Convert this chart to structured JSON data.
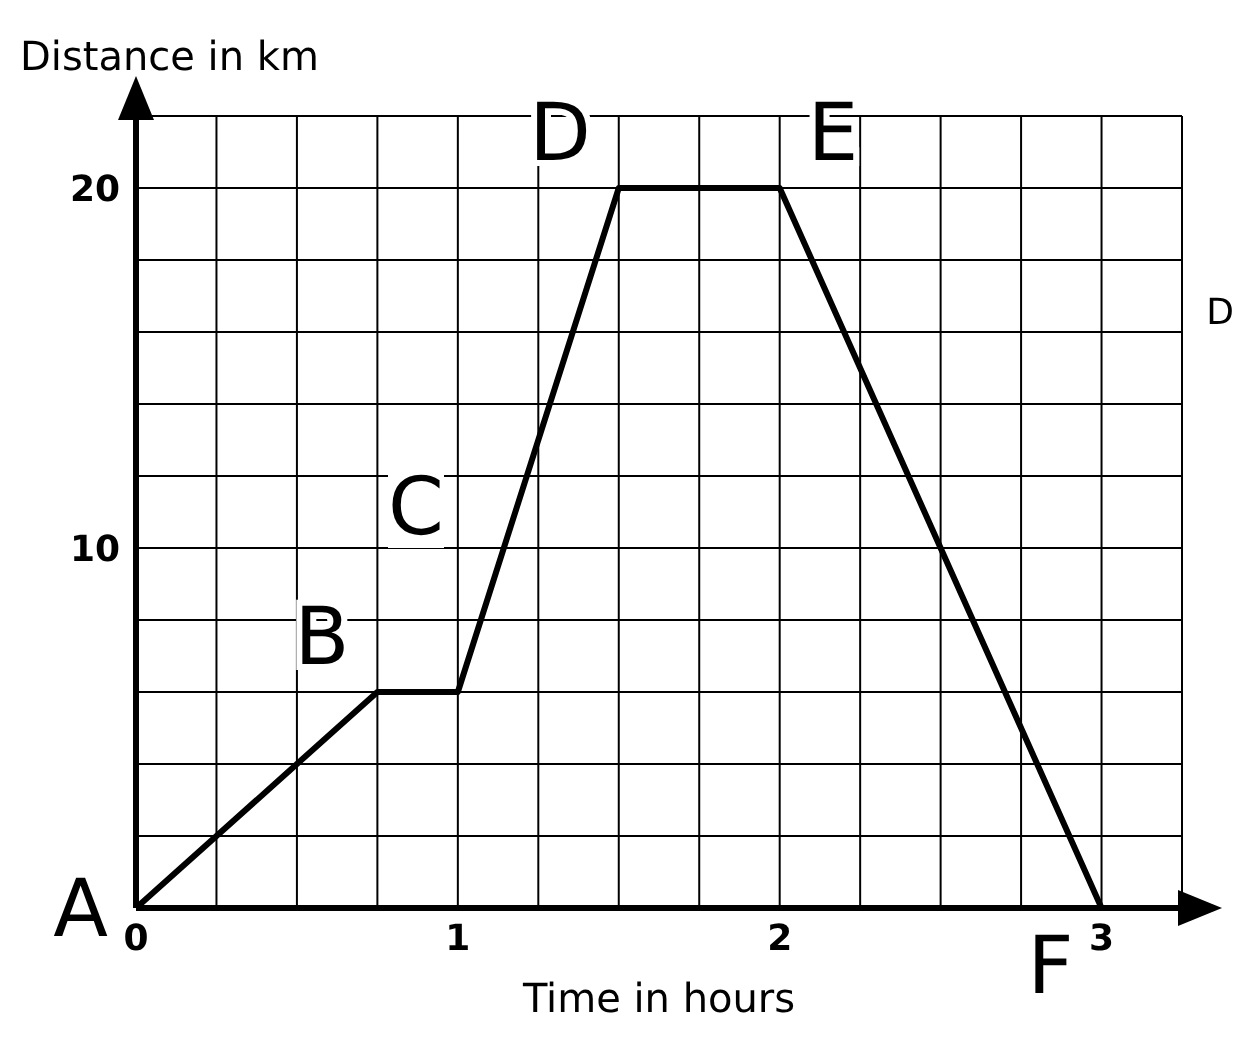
{
  "chart_data": {
    "type": "line",
    "xlabel": "Time in hours",
    "ylabel": "Distance in km",
    "x": [
      0,
      0.75,
      1,
      1.5,
      2,
      3
    ],
    "series": [
      {
        "color": "#000000",
        "values": [
          0,
          6,
          6,
          20,
          20,
          0
        ]
      }
    ],
    "xlim": [
      0,
      3.25
    ],
    "ylim": [
      0,
      22
    ],
    "xticks": [
      0,
      {
        "value": 0.25,
        "label": null
      },
      {
        "value": 0.5,
        "label": null
      },
      {
        "value": 0.75,
        "label": null
      },
      1,
      {
        "value": 1.25,
        "label": null
      },
      {
        "value": 1.5,
        "label": null
      },
      {
        "value": 1.75,
        "label": null
      },
      2,
      {
        "value": 2.25,
        "label": null
      },
      {
        "value": 2.5,
        "label": null
      },
      {
        "value": 2.75,
        "label": null
      },
      3
    ],
    "yticks": [
      {
        "value": 0,
        "label": null
      },
      {
        "value": 2,
        "label": null
      },
      {
        "value": 4,
        "label": null
      },
      {
        "value": 6,
        "label": null
      },
      {
        "value": 8,
        "label": null
      },
      10,
      {
        "value": 12,
        "label": null
      },
      {
        "value": 14,
        "label": null
      },
      {
        "value": 16,
        "label": null
      },
      {
        "value": 18,
        "label": null
      },
      20
    ],
    "grid": true,
    "marker": "none",
    "line_style": "solid",
    "annotations": [
      {
        "text": "A",
        "x": 0,
        "y": 0
      },
      {
        "text": "B",
        "x": 0.75,
        "y": 6
      },
      "C",
      {
        "text": "D",
        "x": 1.5,
        "y": 20
      },
      {
        "text": "E",
        "x": 2,
        "y": 20
      },
      {
        "text": "F",
        "x": 3,
        "y": 0
      },
      "D"
    ]
  }
}
